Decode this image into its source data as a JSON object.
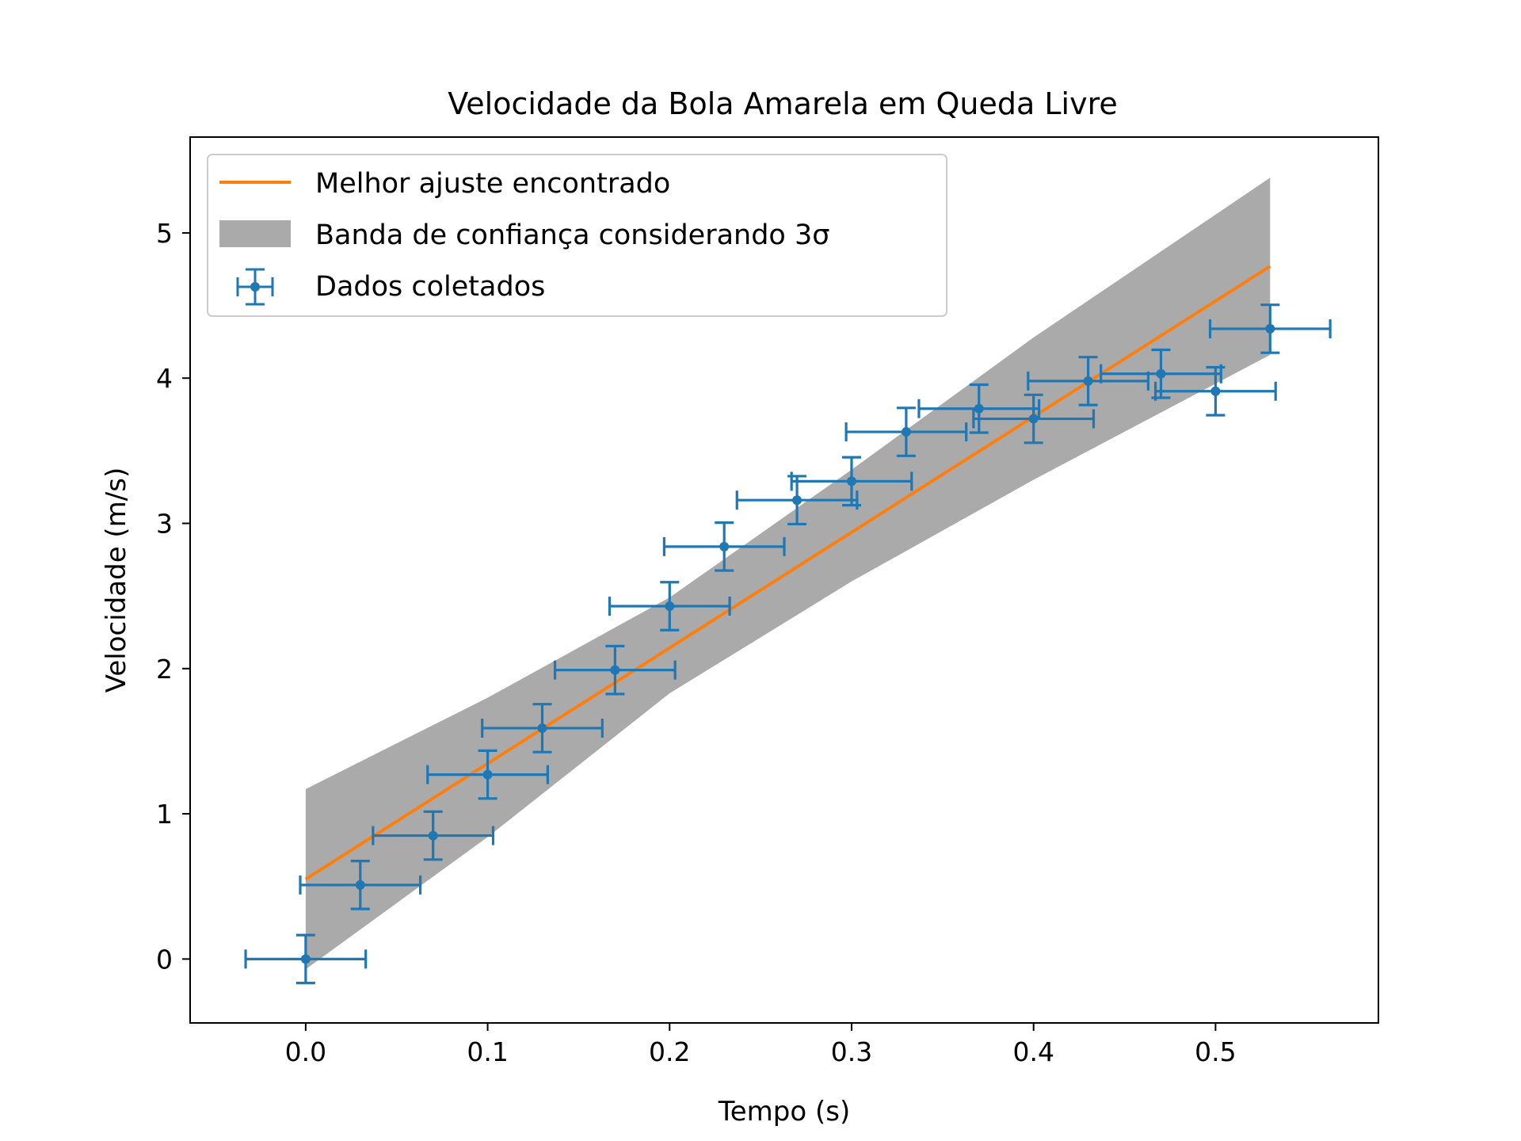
{
  "chart_data": {
    "type": "scatter",
    "title": "Velocidade da Bola Amarela em Queda Livre",
    "xlabel": "Tempo (s)",
    "ylabel": "Velocidade (m/s)",
    "xlim": [
      -0.0635,
      0.5895
    ],
    "ylim": [
      -0.44,
      5.66
    ],
    "xticks": [
      0.0,
      0.1,
      0.2,
      0.3,
      0.4,
      0.5
    ],
    "xtick_labels": [
      "0.0",
      "0.1",
      "0.2",
      "0.3",
      "0.4",
      "0.5"
    ],
    "yticks": [
      0,
      1,
      2,
      3,
      4,
      5
    ],
    "ytick_labels": [
      "0",
      "1",
      "2",
      "3",
      "4",
      "5"
    ],
    "grid": false,
    "legend_position": "top-left",
    "legend": [
      {
        "label": "Melhor ajuste encontrado",
        "kind": "line",
        "color": "#ff7f0e"
      },
      {
        "label": "Banda de confiança considerando 3σ",
        "kind": "band",
        "color": "#aaaaaa"
      },
      {
        "label": "Dados coletados",
        "kind": "errorbar",
        "color": "#1f77b4"
      }
    ],
    "series": [
      {
        "name": "Dados coletados",
        "type": "errorbar",
        "color": "#1f77b4",
        "x": [
          0.0,
          0.03,
          0.07,
          0.1,
          0.13,
          0.17,
          0.2,
          0.23,
          0.27,
          0.3,
          0.33,
          0.37,
          0.4,
          0.43,
          0.47,
          0.5,
          0.53
        ],
        "y": [
          0.0,
          0.51,
          0.85,
          1.27,
          1.59,
          1.99,
          2.43,
          2.84,
          3.16,
          3.29,
          3.63,
          3.79,
          3.72,
          3.98,
          4.03,
          3.91,
          4.34
        ],
        "xerr": 0.033,
        "yerr": 0.165
      },
      {
        "name": "Melhor ajuste encontrado",
        "type": "line",
        "color": "#ff7f0e",
        "x": [
          0.0,
          0.53
        ],
        "y": [
          0.55,
          4.77
        ]
      },
      {
        "name": "Banda de confiança considerando 3σ",
        "type": "area",
        "color": "#aaaaaa",
        "x": [
          0.0,
          0.1,
          0.2,
          0.3,
          0.4,
          0.53
        ],
        "upper": [
          1.17,
          1.8,
          2.49,
          3.37,
          4.28,
          5.38
        ],
        "lower": [
          -0.07,
          0.84,
          1.83,
          2.6,
          3.3,
          4.16
        ]
      }
    ]
  }
}
